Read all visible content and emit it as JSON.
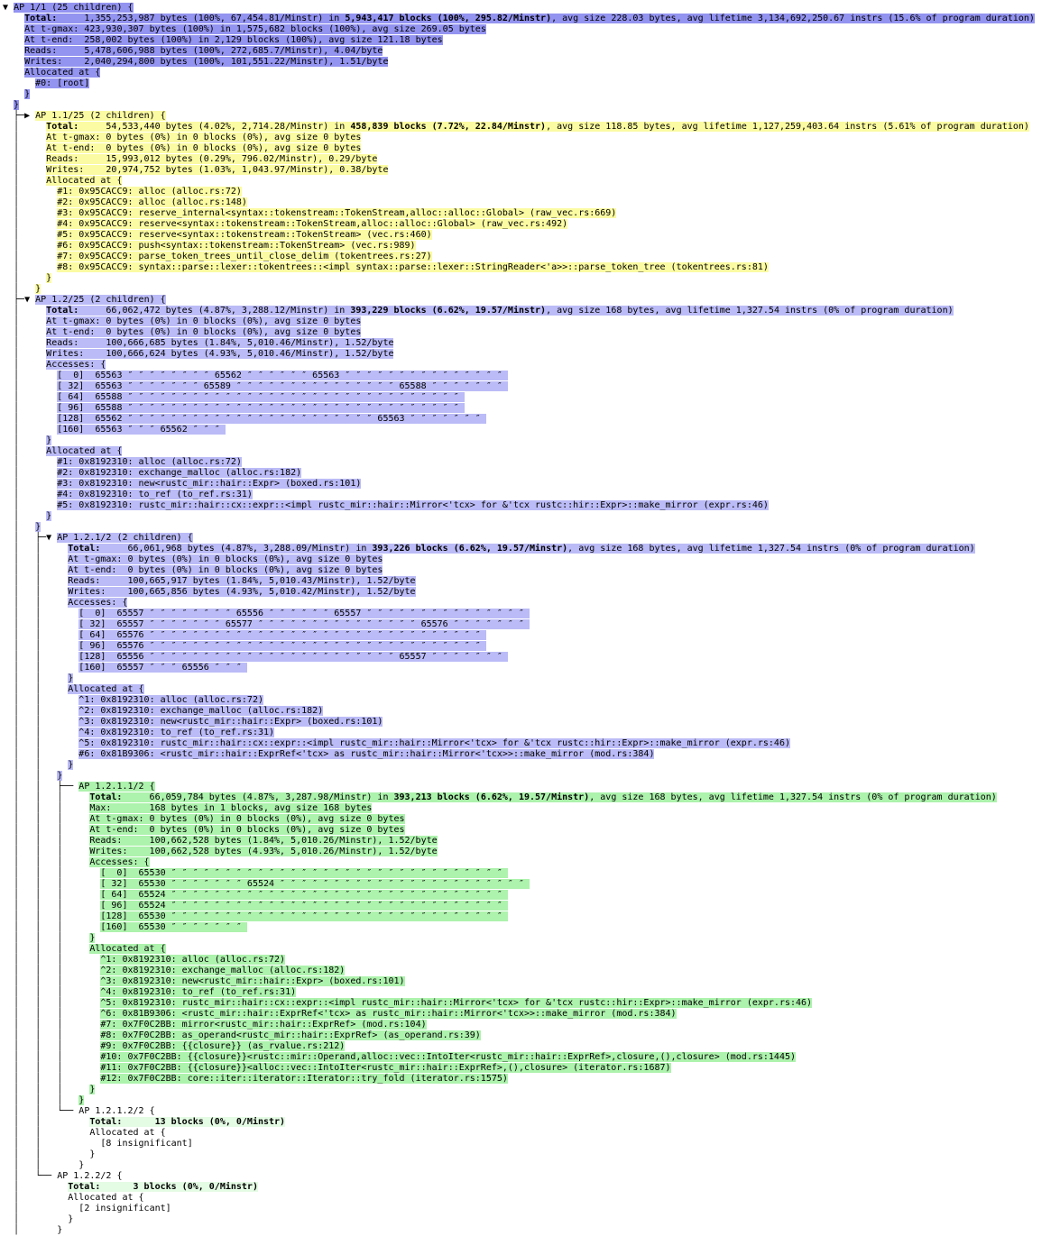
{
  "palette": {
    "root": "#9393f0",
    "yellow": "#fbfba3",
    "lavender": "#bbbbf7",
    "green": "#adf2ad",
    "insig": "#e4fbe4"
  },
  "ditto": "″",
  "access_row_labels": [
    "[  0]",
    "[ 32]",
    "[ 64]",
    "[ 96]",
    "[128]",
    "[160]"
  ],
  "labels": {
    "accesses_open": "Accesses: {",
    "allocated_open": "Allocated at {",
    "close_inner": "}",
    "close_node": "}"
  },
  "tree": {
    "id": "1",
    "depth": 0,
    "last": false,
    "sig": true,
    "color": "root",
    "expander": "▼",
    "header": "AP 1/1 (25 children) {",
    "stats": [
      [
        {
          "t": "Total:",
          "b": true
        },
        {
          "t": "     1,355,253,987 bytes (100%, 67,454.81/Minstr) in "
        },
        {
          "t": "5,943,417 blocks (100%, 295.82/Minstr)",
          "b": true
        },
        {
          "t": ", avg size 228.03 bytes, avg lifetime 3,134,692,250.67 instrs (15.6% of program duration)"
        }
      ],
      [
        {
          "t": "At t-gmax: 423,930,307 bytes (100%) in 1,575,682 blocks (100%), avg size 269.05 bytes"
        }
      ],
      [
        {
          "t": "At t-end:  258,002 bytes (100%) in 2,129 blocks (100%), avg size 121.18 bytes"
        }
      ],
      [
        {
          "t": "Reads:     5,478,606,988 bytes (100%, 272,685.7/Minstr), 4.04/byte"
        }
      ],
      [
        {
          "t": "Writes:    2,040,294,800 bytes (100%, 101,551.22/Minstr), 1.51/byte"
        }
      ]
    ],
    "frames": [
      "#0: [root]"
    ],
    "children": [
      {
        "id": "1.1",
        "depth": 1,
        "last": false,
        "sig": true,
        "color": "yellow",
        "expander": "▶",
        "header": "AP 1.1/25 (2 children) {",
        "stats": [
          [
            {
              "t": "Total:",
              "b": true
            },
            {
              "t": "     54,533,440 bytes (4.02%, 2,714.28/Minstr) in "
            },
            {
              "t": "458,839 blocks (7.72%, 22.84/Minstr)",
              "b": true
            },
            {
              "t": ", avg size 118.85 bytes, avg lifetime 1,127,259,403.64 instrs (5.61% of program duration)"
            }
          ],
          [
            {
              "t": "At t-gmax: 0 bytes (0%) in 0 blocks (0%), avg size 0 bytes"
            }
          ],
          [
            {
              "t": "At t-end:  0 bytes (0%) in 0 blocks (0%), avg size 0 bytes"
            }
          ],
          [
            {
              "t": "Reads:     15,993,012 bytes (0.29%, 796.02/Minstr), 0.29/byte"
            }
          ],
          [
            {
              "t": "Writes:    20,974,752 bytes (1.03%, 1,043.97/Minstr), 0.38/byte"
            }
          ]
        ],
        "frames": [
          "#1: 0x95CACC9: alloc (alloc.rs:72)",
          "#2: 0x95CACC9: alloc (alloc.rs:148)",
          "#3: 0x95CACC9: reserve_internal<syntax::tokenstream::TokenStream,alloc::alloc::Global> (raw_vec.rs:669)",
          "#4: 0x95CACC9: reserve<syntax::tokenstream::TokenStream,alloc::alloc::Global> (raw_vec.rs:492)",
          "#5: 0x95CACC9: reserve<syntax::tokenstream::TokenStream> (vec.rs:460)",
          "#6: 0x95CACC9: push<syntax::tokenstream::TokenStream> (vec.rs:989)",
          "#7: 0x95CACC9: parse_token_trees_until_close_delim (tokentrees.rs:27)",
          "#8: 0x95CACC9: syntax::parse::lexer::tokentrees::<impl syntax::parse::lexer::StringReader<'a>>::parse_token_tree (tokentrees.rs:81)"
        ],
        "children": []
      },
      {
        "id": "1.2",
        "depth": 1,
        "last": false,
        "sig": true,
        "color": "lavender",
        "expander": "▼",
        "header": "AP 1.2/25 (2 children) {",
        "stats": [
          [
            {
              "t": "Total:",
              "b": true
            },
            {
              "t": "     66,062,472 bytes (4.87%, 3,288.12/Minstr) in "
            },
            {
              "t": "393,229 blocks (6.62%, 19.57/Minstr)",
              "b": true
            },
            {
              "t": ", avg size 168 bytes, avg lifetime 1,327.54 instrs (0% of program duration)"
            }
          ],
          [
            {
              "t": "At t-gmax: 0 bytes (0%) in 0 blocks (0%), avg size 0 bytes"
            }
          ],
          [
            {
              "t": "At t-end:  0 bytes (0%) in 0 blocks (0%), avg size 0 bytes"
            }
          ],
          [
            {
              "t": "Reads:     100,666,685 bytes (1.84%, 5,010.46/Minstr), 1.52/byte"
            }
          ],
          [
            {
              "t": "Writes:    100,666,624 bytes (4.93%, 5,010.46/Minstr), 1.52/byte"
            }
          ]
        ],
        "accesses": [
          [
            [
              "65563",
              8
            ],
            [
              "65562",
              6
            ],
            [
              "65563",
              15
            ]
          ],
          [
            [
              "65563",
              7
            ],
            [
              "65589",
              15
            ],
            [
              "65588",
              7
            ]
          ],
          [
            [
              "65588",
              31
            ]
          ],
          [
            [
              "65588",
              31
            ]
          ],
          [
            [
              "65562",
              23
            ],
            [
              "65563",
              7
            ]
          ],
          [
            [
              "65563",
              3
            ],
            [
              "65562",
              3
            ]
          ]
        ],
        "frames": [
          "#1: 0x8192310: alloc (alloc.rs:72)",
          "#2: 0x8192310: exchange_malloc (alloc.rs:182)",
          "#3: 0x8192310: new<rustc_mir::hair::Expr> (boxed.rs:101)",
          "#4: 0x8192310: to_ref (to_ref.rs:31)",
          "#5: 0x8192310: rustc_mir::hair::cx::expr::<impl rustc_mir::hair::Mirror<'tcx> for &'tcx rustc::hir::Expr>::make_mirror (expr.rs:46)"
        ],
        "children": [
          {
            "id": "1.2.1",
            "depth": 2,
            "last": false,
            "sig": true,
            "color": "lavender",
            "expander": "▼",
            "header": "AP 1.2.1/2 (2 children) {",
            "stats": [
              [
                {
                  "t": "Total:",
                  "b": true
                },
                {
                  "t": "     66,061,968 bytes (4.87%, 3,288.09/Minstr) in "
                },
                {
                  "t": "393,226 blocks (6.62%, 19.57/Minstr)",
                  "b": true
                },
                {
                  "t": ", avg size 168 bytes, avg lifetime 1,327.54 instrs (0% of program duration)"
                }
              ],
              [
                {
                  "t": "At t-gmax: 0 bytes (0%) in 0 blocks (0%), avg size 0 bytes"
                }
              ],
              [
                {
                  "t": "At t-end:  0 bytes (0%) in 0 blocks (0%), avg size 0 bytes"
                }
              ],
              [
                {
                  "t": "Reads:     100,665,917 bytes (1.84%, 5,010.43/Minstr), 1.52/byte"
                }
              ],
              [
                {
                  "t": "Writes:    100,665,856 bytes (4.93%, 5,010.42/Minstr), 1.52/byte"
                }
              ]
            ],
            "accesses": [
              [
                [
                  "65557",
                  8
                ],
                [
                  "65556",
                  6
                ],
                [
                  "65557",
                  15
                ]
              ],
              [
                [
                  "65557",
                  7
                ],
                [
                  "65577",
                  15
                ],
                [
                  "65576",
                  7
                ]
              ],
              [
                [
                  "65576",
                  31
                ]
              ],
              [
                [
                  "65576",
                  31
                ]
              ],
              [
                [
                  "65556",
                  23
                ],
                [
                  "65557",
                  7
                ]
              ],
              [
                [
                  "65557",
                  3
                ],
                [
                  "65556",
                  3
                ]
              ]
            ],
            "frames": [
              "^1: 0x8192310: alloc (alloc.rs:72)",
              "^2: 0x8192310: exchange_malloc (alloc.rs:182)",
              "^3: 0x8192310: new<rustc_mir::hair::Expr> (boxed.rs:101)",
              "^4: 0x8192310: to_ref (to_ref.rs:31)",
              "^5: 0x8192310: rustc_mir::hair::cx::expr::<impl rustc_mir::hair::Mirror<'tcx> for &'tcx rustc::hir::Expr>::make_mirror (expr.rs:46)",
              "#6: 0x81B9306: <rustc_mir::hair::ExprRef<'tcx> as rustc_mir::hair::Mirror<'tcx>>::make_mirror (mod.rs:384)"
            ],
            "children": [
              {
                "id": "1.2.1.1",
                "depth": 3,
                "last": false,
                "sig": true,
                "color": "green",
                "expander": null,
                "header": "AP 1.2.1.1/2 {",
                "stats": [
                  [
                    {
                      "t": "Total:",
                      "b": true
                    },
                    {
                      "t": "     66,059,784 bytes (4.87%, 3,287.98/Minstr) in "
                    },
                    {
                      "t": "393,213 blocks (6.62%, 19.57/Minstr)",
                      "b": true
                    },
                    {
                      "t": ", avg size 168 bytes, avg lifetime 1,327.54 instrs (0% of program duration)"
                    }
                  ],
                  [
                    {
                      "t": "Max:       168 bytes in 1 blocks, avg size 168 bytes"
                    }
                  ],
                  [
                    {
                      "t": "At t-gmax: 0 bytes (0%) in 0 blocks (0%), avg size 0 bytes"
                    }
                  ],
                  [
                    {
                      "t": "At t-end:  0 bytes (0%) in 0 blocks (0%), avg size 0 bytes"
                    }
                  ],
                  [
                    {
                      "t": "Reads:     100,662,528 bytes (1.84%, 5,010.26/Minstr), 1.52/byte"
                    }
                  ],
                  [
                    {
                      "t": "Writes:    100,662,528 bytes (4.93%, 5,010.26/Minstr), 1.52/byte"
                    }
                  ]
                ],
                "accesses": [
                  [
                    [
                      "65530",
                      31
                    ]
                  ],
                  [
                    [
                      "65530",
                      7
                    ],
                    [
                      "65524",
                      23
                    ]
                  ],
                  [
                    [
                      "65524",
                      31
                    ]
                  ],
                  [
                    [
                      "65524",
                      31
                    ]
                  ],
                  [
                    [
                      "65530",
                      31
                    ]
                  ],
                  [
                    [
                      "65530",
                      7
                    ]
                  ]
                ],
                "frames": [
                  "^1: 0x8192310: alloc (alloc.rs:72)",
                  "^2: 0x8192310: exchange_malloc (alloc.rs:182)",
                  "^3: 0x8192310: new<rustc_mir::hair::Expr> (boxed.rs:101)",
                  "^4: 0x8192310: to_ref (to_ref.rs:31)",
                  "^5: 0x8192310: rustc_mir::hair::cx::expr::<impl rustc_mir::hair::Mirror<'tcx> for &'tcx rustc::hir::Expr>::make_mirror (expr.rs:46)",
                  "^6: 0x81B9306: <rustc_mir::hair::ExprRef<'tcx> as rustc_mir::hair::Mirror<'tcx>>::make_mirror (mod.rs:384)",
                  "#7: 0x7F0C2BB: mirror<rustc_mir::hair::ExprRef> (mod.rs:104)",
                  "#8: 0x7F0C2BB: as_operand<rustc_mir::hair::ExprRef> (as_operand.rs:39)",
                  "#9: 0x7F0C2BB: {{closure}} (as_rvalue.rs:212)",
                  "#10: 0x7F0C2BB: {{closure}}<rustc::mir::Operand,alloc::vec::IntoIter<rustc_mir::hair::ExprRef>,closure,(),closure> (mod.rs:1445)",
                  "#11: 0x7F0C2BB: {{closure}}<alloc::vec::IntoIter<rustc_mir::hair::ExprRef>,(),closure> (iterator.rs:1687)",
                  "#12: 0x7F0C2BB: core::iter::iterator::Iterator::try_fold (iterator.rs:1575)"
                ],
                "children": []
              },
              {
                "id": "1.2.1.2",
                "depth": 3,
                "last": true,
                "sig": false,
                "color": "insig",
                "expander": null,
                "header": "AP 1.2.1.2/2 {",
                "stats": [
                  [
                    {
                      "t": "Total:      13 blocks (0%, 0/Minstr)",
                      "b": true
                    }
                  ]
                ],
                "insig_note": "[8 insignificant]",
                "children": []
              }
            ]
          },
          {
            "id": "1.2.2",
            "depth": 2,
            "last": true,
            "sig": false,
            "color": "insig",
            "expander": null,
            "header": "AP 1.2.2/2 {",
            "stats": [
              [
                {
                  "t": "Total:      3 blocks (0%, 0/Minstr)",
                  "b": true
                }
              ]
            ],
            "insig_note": "[2 insignificant]",
            "children": []
          }
        ]
      }
    ]
  }
}
